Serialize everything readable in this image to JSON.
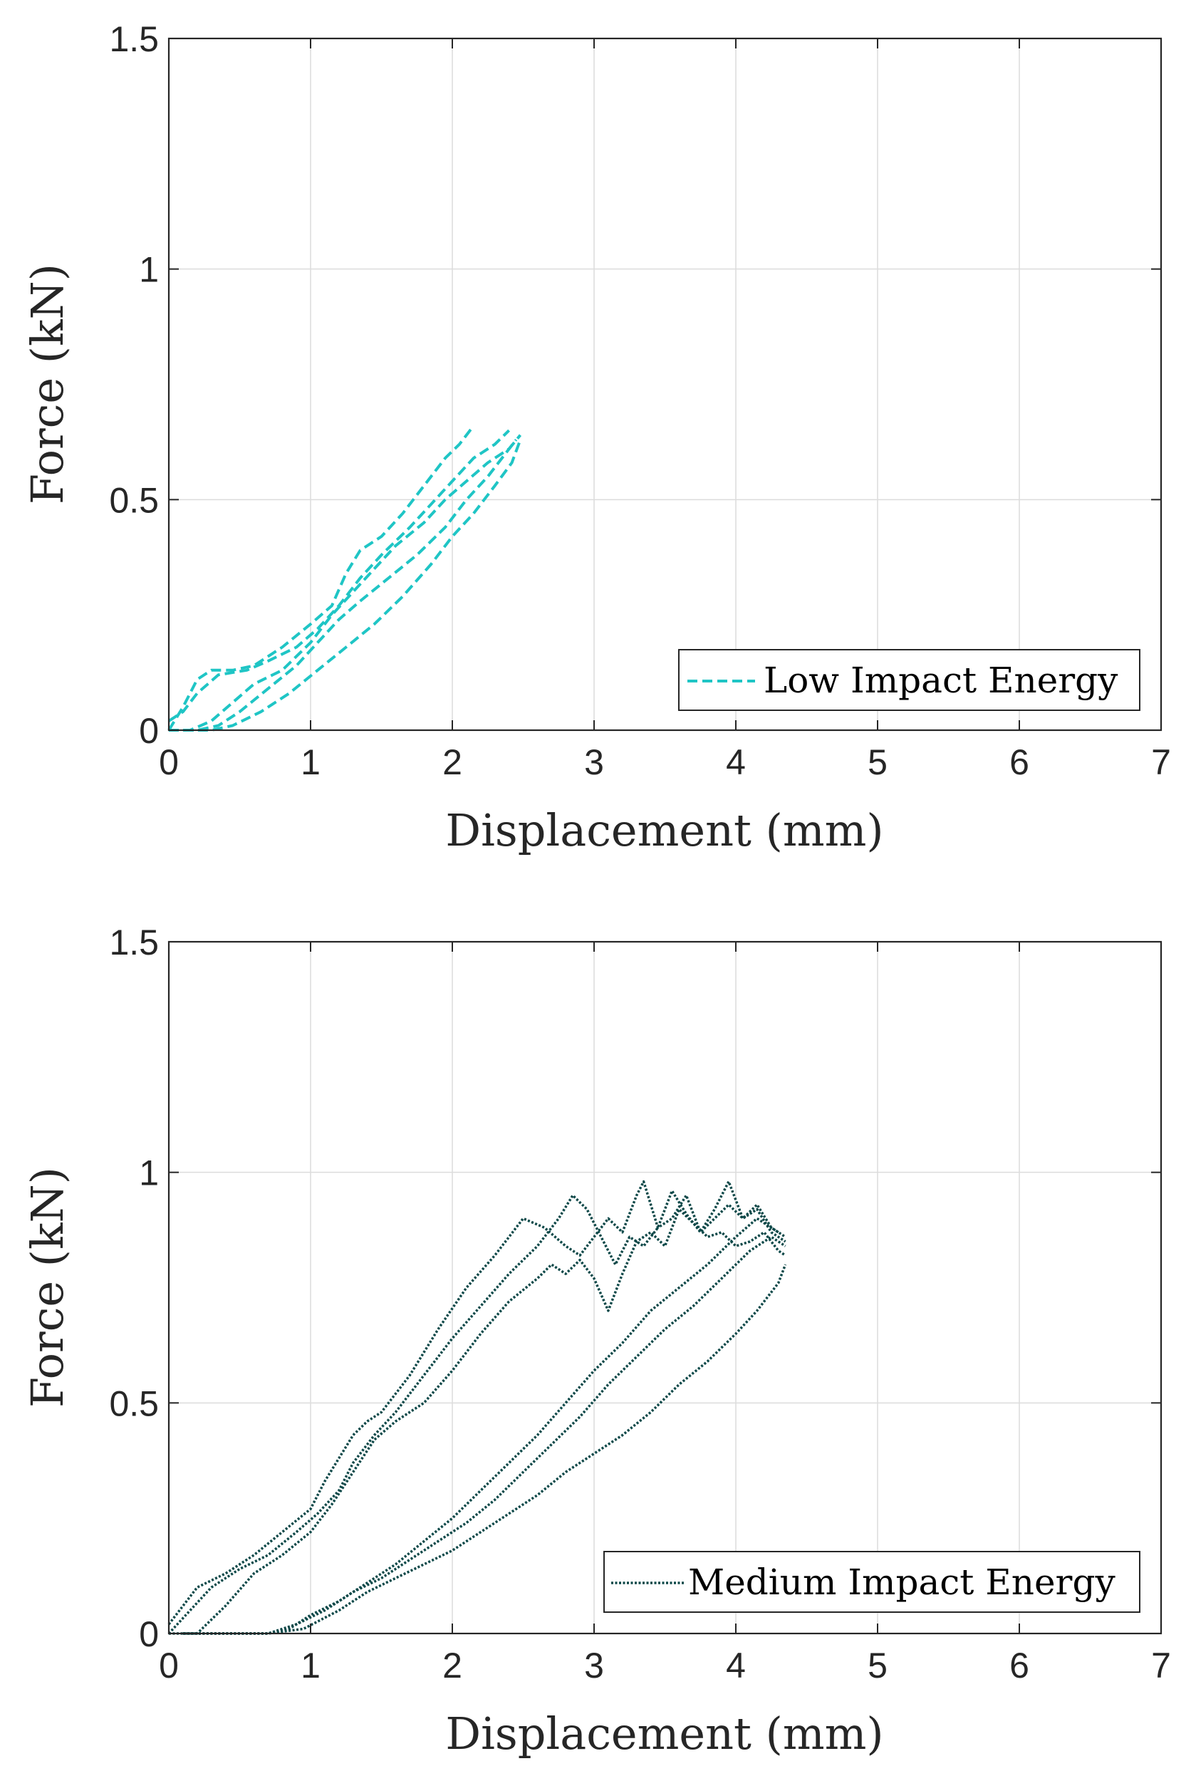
{
  "chart_data": [
    {
      "type": "line",
      "xlabel": "Displacement (mm)",
      "ylabel": "Force (kN)",
      "xlim": [
        0,
        7
      ],
      "ylim": [
        0,
        1.5
      ],
      "xticks": [
        0,
        1,
        2,
        3,
        4,
        5,
        6,
        7
      ],
      "yticks": [
        0,
        0.5,
        1,
        1.5
      ],
      "xtick_labels": [
        "0",
        "1",
        "2",
        "3",
        "4",
        "5",
        "6",
        "7"
      ],
      "ytick_labels": [
        "0",
        "0.5",
        "1",
        "1.5"
      ],
      "grid": true,
      "legend": {
        "label": "Low Impact Energy",
        "placement": "bottom-right"
      },
      "line_color": "#1fc5c5",
      "line_style": "dashed",
      "series": [
        {
          "name": "Low Impact Energy 1",
          "x": [
            0,
            0.1,
            0.2,
            0.3,
            0.45,
            0.6,
            0.8,
            1.0,
            1.15,
            1.25,
            1.35,
            1.5,
            1.65,
            1.8,
            1.95,
            2.05,
            2.15
          ],
          "y": [
            0,
            0.05,
            0.11,
            0.13,
            0.13,
            0.14,
            0.18,
            0.23,
            0.27,
            0.34,
            0.39,
            0.42,
            0.47,
            0.53,
            0.59,
            0.62,
            0.66
          ]
        },
        {
          "name": "Low Impact Energy 2",
          "x": [
            0,
            0.1,
            0.2,
            0.35,
            0.55,
            0.7,
            0.9,
            1.05,
            1.2,
            1.35,
            1.5,
            1.7,
            1.85,
            2.0,
            2.15,
            2.3,
            2.4
          ],
          "y": [
            0.02,
            0.04,
            0.08,
            0.12,
            0.13,
            0.15,
            0.18,
            0.22,
            0.27,
            0.33,
            0.38,
            0.44,
            0.49,
            0.54,
            0.59,
            0.62,
            0.65
          ]
        },
        {
          "name": "Low Impact Energy 3",
          "x": [
            0,
            0.15,
            0.3,
            0.45,
            0.6,
            0.8,
            1.0,
            1.15,
            1.3,
            1.45,
            1.6,
            1.8,
            1.95,
            2.1,
            2.25,
            2.4,
            2.48
          ],
          "y": [
            0,
            0,
            0.02,
            0.06,
            0.1,
            0.13,
            0.19,
            0.25,
            0.3,
            0.35,
            0.4,
            0.45,
            0.5,
            0.54,
            0.58,
            0.61,
            0.64
          ]
        },
        {
          "name": "Low Impact Energy 4",
          "x": [
            0,
            0.2,
            0.35,
            0.5,
            0.7,
            0.9,
            1.05,
            1.2,
            1.35,
            1.55,
            1.75,
            1.95,
            2.1,
            2.25,
            2.35,
            2.45
          ],
          "y": [
            0,
            0,
            0.01,
            0.04,
            0.09,
            0.14,
            0.19,
            0.24,
            0.28,
            0.33,
            0.38,
            0.44,
            0.5,
            0.55,
            0.59,
            0.63
          ]
        },
        {
          "name": "Low Impact Energy 5",
          "x": [
            0.1,
            0.3,
            0.45,
            0.65,
            0.85,
            1.05,
            1.25,
            1.45,
            1.65,
            1.85,
            2.0,
            2.15,
            2.3,
            2.42,
            2.48
          ],
          "y": [
            0,
            0,
            0.01,
            0.04,
            0.08,
            0.13,
            0.18,
            0.23,
            0.29,
            0.36,
            0.42,
            0.47,
            0.53,
            0.58,
            0.63
          ]
        }
      ]
    },
    {
      "type": "line",
      "xlabel": "Displacement (mm)",
      "ylabel": "Force (kN)",
      "xlim": [
        0,
        7
      ],
      "ylim": [
        0,
        1.5
      ],
      "xticks": [
        0,
        1,
        2,
        3,
        4,
        5,
        6,
        7
      ],
      "yticks": [
        0,
        0.5,
        1,
        1.5
      ],
      "xtick_labels": [
        "0",
        "1",
        "2",
        "3",
        "4",
        "5",
        "6",
        "7"
      ],
      "ytick_labels": [
        "0",
        "0.5",
        "1",
        "1.5"
      ],
      "grid": true,
      "legend": {
        "label": "Medium Impact Energy",
        "placement": "bottom-right"
      },
      "line_color": "#0d4848",
      "line_style": "dotted",
      "series": [
        {
          "name": "Medium Impact Energy 1",
          "x": [
            0,
            0.1,
            0.2,
            0.4,
            0.6,
            0.8,
            1.0,
            1.1,
            1.2,
            1.3,
            1.4,
            1.5,
            1.7,
            1.9,
            2.1,
            2.3,
            2.5,
            2.65,
            2.8,
            2.9,
            3.0,
            3.1,
            3.2,
            3.3,
            3.35,
            3.45,
            3.55,
            3.65,
            3.75,
            3.85,
            3.95,
            4.05,
            4.15,
            4.25,
            4.35
          ],
          "y": [
            0.02,
            0.06,
            0.1,
            0.13,
            0.17,
            0.22,
            0.27,
            0.33,
            0.38,
            0.43,
            0.46,
            0.48,
            0.56,
            0.66,
            0.75,
            0.82,
            0.9,
            0.88,
            0.84,
            0.82,
            0.86,
            0.9,
            0.87,
            0.95,
            0.98,
            0.88,
            0.9,
            0.95,
            0.87,
            0.92,
            0.98,
            0.9,
            0.93,
            0.88,
            0.86
          ]
        },
        {
          "name": "Medium Impact Energy 2",
          "x": [
            0,
            0.15,
            0.3,
            0.5,
            0.7,
            0.9,
            1.05,
            1.2,
            1.3,
            1.45,
            1.6,
            1.8,
            2.0,
            2.2,
            2.4,
            2.6,
            2.75,
            2.85,
            2.95,
            3.05,
            3.15,
            3.25,
            3.35,
            3.45,
            3.55,
            3.65,
            3.75,
            3.85,
            3.95,
            4.05,
            4.15,
            4.25,
            4.35
          ],
          "y": [
            0,
            0.05,
            0.1,
            0.14,
            0.17,
            0.22,
            0.26,
            0.31,
            0.37,
            0.43,
            0.48,
            0.56,
            0.64,
            0.71,
            0.78,
            0.84,
            0.9,
            0.95,
            0.92,
            0.86,
            0.8,
            0.86,
            0.84,
            0.88,
            0.96,
            0.91,
            0.87,
            0.9,
            0.93,
            0.9,
            0.92,
            0.87,
            0.85
          ]
        },
        {
          "name": "Medium Impact Energy 3",
          "x": [
            0,
            0.2,
            0.4,
            0.6,
            0.8,
            1.0,
            1.15,
            1.3,
            1.45,
            1.6,
            1.8,
            2.0,
            2.2,
            2.4,
            2.6,
            2.7,
            2.8,
            2.9,
            3.0,
            3.1,
            3.2,
            3.3,
            3.4,
            3.5,
            3.6,
            3.7,
            3.8,
            3.9,
            4.0,
            4.1,
            4.2,
            4.3,
            4.35
          ],
          "y": [
            0,
            0,
            0.06,
            0.13,
            0.17,
            0.22,
            0.28,
            0.35,
            0.42,
            0.46,
            0.5,
            0.57,
            0.65,
            0.72,
            0.77,
            0.8,
            0.78,
            0.81,
            0.77,
            0.7,
            0.78,
            0.85,
            0.87,
            0.84,
            0.92,
            0.89,
            0.86,
            0.87,
            0.84,
            0.85,
            0.87,
            0.83,
            0.82
          ]
        },
        {
          "name": "Medium Impact Energy 4",
          "x": [
            0.1,
            0.4,
            0.7,
            0.85,
            1.0,
            1.2,
            1.4,
            1.6,
            1.8,
            2.0,
            2.2,
            2.4,
            2.6,
            2.8,
            3.0,
            3.2,
            3.4,
            3.6,
            3.8,
            4.0,
            4.15,
            4.3
          ],
          "y": [
            0,
            0,
            0,
            0.01,
            0.04,
            0.07,
            0.11,
            0.15,
            0.2,
            0.25,
            0.31,
            0.37,
            0.43,
            0.5,
            0.57,
            0.63,
            0.7,
            0.75,
            0.8,
            0.86,
            0.9,
            0.87
          ]
        },
        {
          "name": "Medium Impact Energy 5",
          "x": [
            0.1,
            0.4,
            0.7,
            0.9,
            1.1,
            1.3,
            1.5,
            1.7,
            1.9,
            2.1,
            2.3,
            2.5,
            2.7,
            2.9,
            3.1,
            3.3,
            3.5,
            3.7,
            3.9,
            4.1,
            4.25,
            4.35
          ],
          "y": [
            0,
            0,
            0,
            0.02,
            0.05,
            0.09,
            0.12,
            0.16,
            0.2,
            0.24,
            0.29,
            0.35,
            0.41,
            0.47,
            0.54,
            0.6,
            0.66,
            0.71,
            0.77,
            0.83,
            0.86,
            0.84
          ]
        },
        {
          "name": "Medium Impact Energy 6",
          "x": [
            0.1,
            0.4,
            0.7,
            0.95,
            1.2,
            1.4,
            1.6,
            1.8,
            2.0,
            2.2,
            2.4,
            2.6,
            2.8,
            3.0,
            3.2,
            3.4,
            3.6,
            3.8,
            4.0,
            4.15,
            4.3,
            4.35
          ],
          "y": [
            0,
            0,
            0,
            0.01,
            0.05,
            0.09,
            0.12,
            0.15,
            0.18,
            0.22,
            0.26,
            0.3,
            0.35,
            0.39,
            0.43,
            0.48,
            0.54,
            0.59,
            0.65,
            0.7,
            0.76,
            0.8
          ]
        }
      ]
    }
  ]
}
